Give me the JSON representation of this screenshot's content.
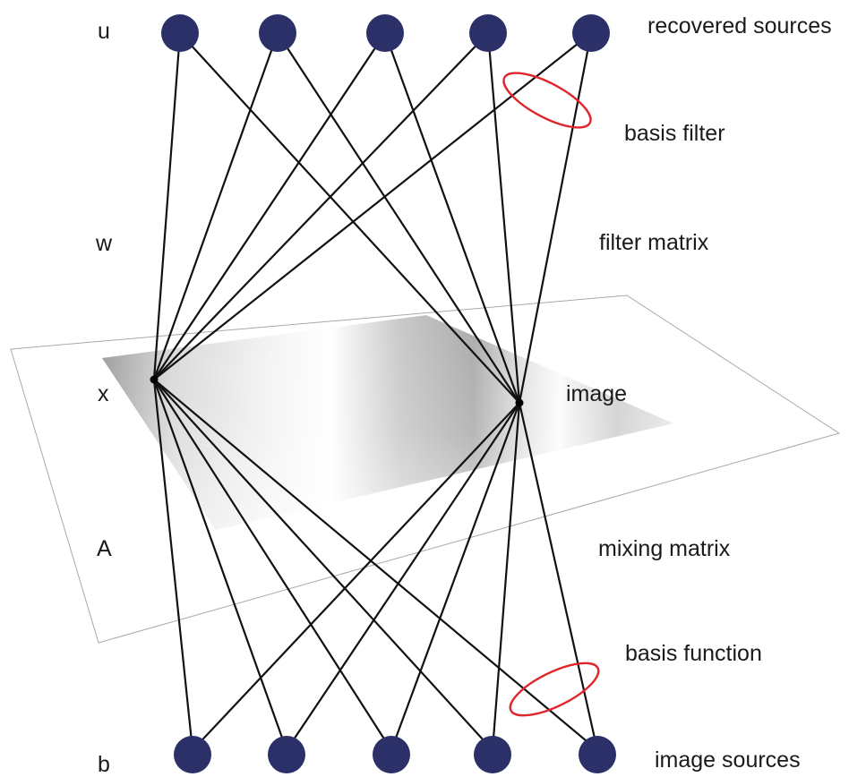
{
  "layers": {
    "u": "u",
    "w": "w",
    "x": "x",
    "A": "A",
    "b": "b"
  },
  "annotations": {
    "recovered_sources": "recovered sources",
    "basis_filter": "basis filter",
    "filter_matrix": "filter matrix",
    "image": "image",
    "mixing_matrix": "mixing matrix",
    "basis_function": "basis function",
    "image_sources": "image sources"
  },
  "colors": {
    "node": "#2b3068",
    "edge": "#111111",
    "highlight": "#e0262b",
    "plane_border": "#a8a8a8"
  }
}
